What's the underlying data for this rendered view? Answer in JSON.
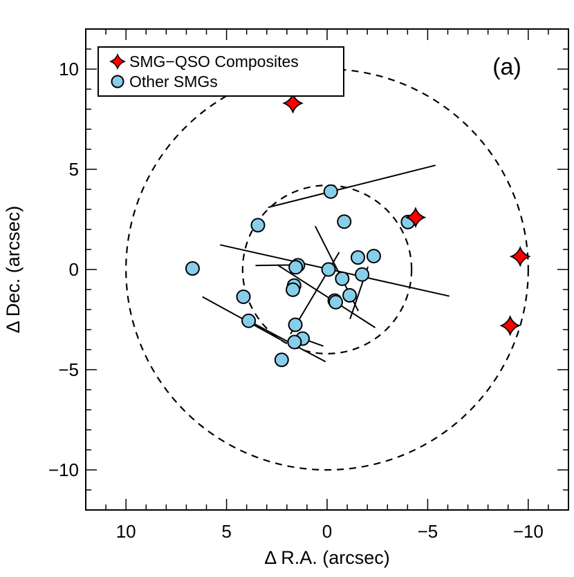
{
  "chart_data": {
    "type": "scatter",
    "panel_label": "(a)",
    "xlabel": "Δ R.A. (arcsec)",
    "ylabel": "Δ Dec. (arcsec)",
    "xlim": [
      12,
      -12
    ],
    "ylim": [
      -12,
      12
    ],
    "x_ticks": [
      10,
      5,
      0,
      -5,
      -10
    ],
    "y_ticks": [
      10,
      5,
      0,
      -5,
      -10
    ],
    "x_tick_labels": [
      "10",
      "5",
      "0",
      "−5",
      "−10"
    ],
    "y_tick_labels": [
      "10",
      "5",
      "0",
      "−5",
      "−10"
    ],
    "grid": false,
    "legend_position": "top-left",
    "reference_circles": [
      {
        "center": [
          0,
          0
        ],
        "radius": 10,
        "style": "dashed"
      },
      {
        "center": [
          0,
          0
        ],
        "radius": 4.2,
        "style": "dashed"
      }
    ],
    "series": [
      {
        "name": "SMG−QSO Composites",
        "marker": "four-point-star",
        "color": "#ff0000",
        "points": [
          [
            1.7,
            8.3
          ],
          [
            -4.4,
            2.6
          ],
          [
            -9.6,
            0.65
          ],
          [
            -9.1,
            -2.8
          ]
        ]
      },
      {
        "name": "Other SMGs",
        "marker": "circle",
        "color": "#87ceeb",
        "points": [
          [
            -0.18,
            3.89
          ],
          [
            3.44,
            2.21
          ],
          [
            -0.85,
            2.39
          ],
          [
            -4.02,
            2.37
          ],
          [
            6.69,
            0.05
          ],
          [
            1.45,
            0.21
          ],
          [
            1.56,
            0.11
          ],
          [
            -0.07,
            0.0
          ],
          [
            -1.53,
            0.6
          ],
          [
            -2.32,
            0.67
          ],
          [
            -1.74,
            -0.25
          ],
          [
            -0.75,
            -0.46
          ],
          [
            1.64,
            -0.8
          ],
          [
            1.7,
            -1.01
          ],
          [
            -1.12,
            -1.29
          ],
          [
            -0.38,
            -1.55
          ],
          [
            -0.43,
            -1.63
          ],
          [
            4.16,
            -1.36
          ],
          [
            3.9,
            -2.56
          ],
          [
            1.58,
            -2.76
          ],
          [
            1.22,
            -3.45
          ],
          [
            1.62,
            -3.62
          ],
          [
            2.26,
            -4.51
          ]
        ]
      }
    ],
    "line_segments": [
      [
        [
          2.93,
          3.1
        ],
        [
          -5.39,
          5.2
        ]
      ],
      [
        [
          5.32,
          1.23
        ],
        [
          -6.08,
          -1.33
        ]
      ],
      [
        [
          3.56,
          0.2
        ],
        [
          1.41,
          0.23
        ]
      ],
      [
        [
          2.47,
          0.23
        ],
        [
          -2.39,
          -2.9
        ]
      ],
      [
        [
          0.59,
          2.16
        ],
        [
          -1.55,
          -2.07
        ]
      ],
      [
        [
          -0.6,
          0.86
        ],
        [
          1.82,
          -3.22
        ]
      ],
      [
        [
          -2.03,
          0.14
        ],
        [
          -1.14,
          -2.47
        ]
      ],
      [
        [
          6.2,
          -1.36
        ],
        [
          2.3,
          -3.51
        ]
      ],
      [
        [
          3.9,
          -2.56
        ],
        [
          0.08,
          -4.6
        ]
      ],
      [
        [
          1.22,
          -3.45
        ],
        [
          0.19,
          -3.82
        ]
      ]
    ]
  }
}
